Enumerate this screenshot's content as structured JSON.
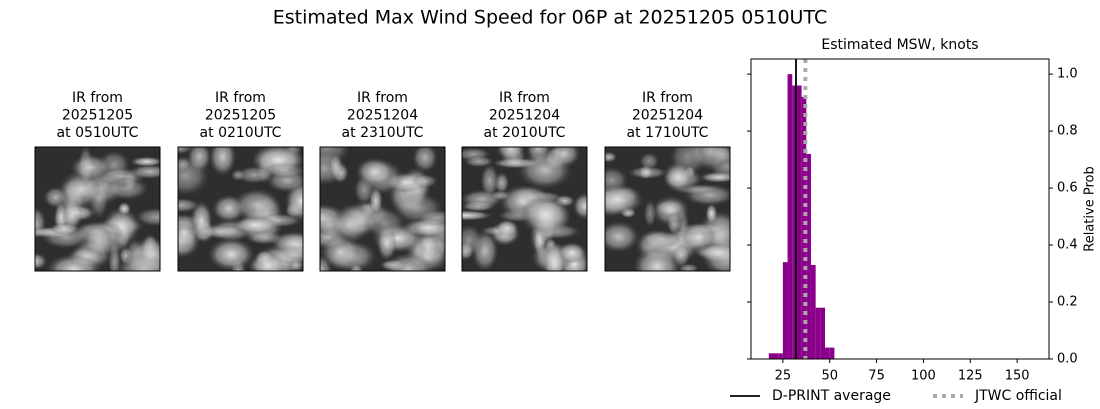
{
  "title": "Estimated Max Wind Speed for 06P at 20251205 0510UTC",
  "panels": [
    {
      "lines": [
        "IR from",
        "20251205",
        "at 0510UTC"
      ]
    },
    {
      "lines": [
        "IR from",
        "20251205",
        "at 0210UTC"
      ]
    },
    {
      "lines": [
        "IR from",
        "20251204",
        "at 2310UTC"
      ]
    },
    {
      "lines": [
        "IR from",
        "20251204",
        "at 2010UTC"
      ]
    },
    {
      "lines": [
        "IR from",
        "20251204",
        "at 1710UTC"
      ]
    }
  ],
  "chart_data": {
    "type": "histogram",
    "title": "Estimated MSW, knots",
    "ylabel": "Relative Prob",
    "bins": [
      17.5,
      20,
      22.5,
      25,
      27.5,
      30,
      32.5,
      35,
      37.5,
      40,
      42.5,
      45,
      47.5,
      50,
      52.5
    ],
    "values": [
      0.02,
      0.02,
      0.02,
      0.34,
      1.0,
      0.96,
      0.96,
      0.92,
      0.72,
      0.33,
      0.18,
      0.18,
      0.04,
      0.04
    ],
    "color": "#8b008b",
    "xlim": [
      8,
      167
    ],
    "ylim": [
      0,
      1.053
    ],
    "xticks": [
      25,
      50,
      75,
      100,
      125,
      150
    ],
    "yticks": [
      {
        "value": 0,
        "label": "0.0"
      },
      {
        "value": 0.2,
        "label": "0.2"
      },
      {
        "value": 0.4,
        "label": "0.4"
      },
      {
        "value": 0.6,
        "label": "0.6"
      },
      {
        "value": 0.8,
        "label": "0.8"
      },
      {
        "value": 1.0,
        "label": "1.0"
      }
    ],
    "reference_lines": [
      {
        "name": "D-PRINT average",
        "value": 32,
        "color": "#000000",
        "style": "solid"
      },
      {
        "name": "JTWC official",
        "value": 37,
        "color": "#aaaaaa",
        "style": "dotted"
      }
    ]
  }
}
